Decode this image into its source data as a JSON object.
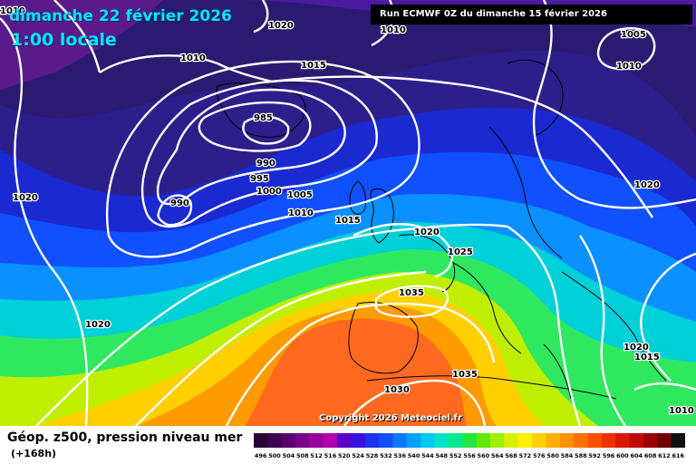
{
  "header": {
    "date_line": "dimanche 22 février 2026",
    "time_line": "1:00 locale",
    "run_info": "Run ECMWF 0Z du dimanche 15 février 2026"
  },
  "footer": {
    "copyright": "Copyright 2026 Meteociel.fr",
    "legend_title": "Géop. z500, pression niveau mer",
    "legend_subtitle": "(+168h)"
  },
  "legend": {
    "values": [
      "496",
      "500",
      "504",
      "508",
      "512",
      "516",
      "520",
      "524",
      "528",
      "532",
      "536",
      "540",
      "544",
      "548",
      "552",
      "556",
      "560",
      "564",
      "568",
      "572",
      "576",
      "580",
      "584",
      "588",
      "592",
      "596",
      "600",
      "604",
      "608",
      "612",
      "616"
    ],
    "colors": [
      "#2a0033",
      "#3d0052",
      "#5a0070",
      "#7a008a",
      "#9a009a",
      "#b000b0",
      "#5a00c8",
      "#3a10e0",
      "#2030f0",
      "#1050ff",
      "#0a78ff",
      "#00a0ff",
      "#00c8f0",
      "#00e0c8",
      "#00e890",
      "#20e840",
      "#60e800",
      "#a0ee00",
      "#d8f000",
      "#ffee00",
      "#ffd000",
      "#ffb000",
      "#ff9000",
      "#ff7000",
      "#ff5000",
      "#f03000",
      "#d81800",
      "#c00800",
      "#9a0000",
      "#700000",
      "#101010"
    ]
  },
  "isobar_labels": [
    {
      "text": "1020"
    },
    {
      "text": "1010"
    },
    {
      "text": "1010"
    },
    {
      "text": "1015"
    },
    {
      "text": "1005"
    },
    {
      "text": "1010"
    },
    {
      "text": "985"
    },
    {
      "text": "990"
    },
    {
      "text": "995"
    },
    {
      "text": "1000"
    },
    {
      "text": "1005"
    },
    {
      "text": "1010"
    },
    {
      "text": "990"
    },
    {
      "text": "1020"
    },
    {
      "text": "1020"
    },
    {
      "text": "1015"
    },
    {
      "text": "1020"
    },
    {
      "text": "1025"
    },
    {
      "text": "1035"
    },
    {
      "text": "1035"
    },
    {
      "text": "1030"
    },
    {
      "text": "1020"
    },
    {
      "text": "1015"
    },
    {
      "text": "1010"
    },
    {
      "text": "1020"
    },
    {
      "text": "1010"
    }
  ]
}
